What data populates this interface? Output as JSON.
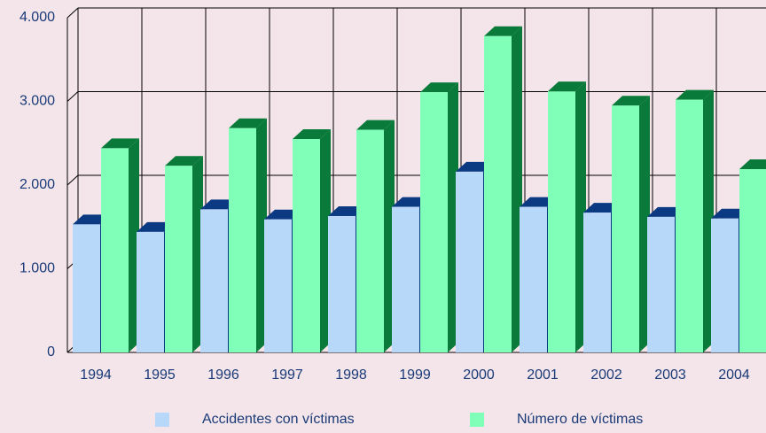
{
  "chart_data": {
    "type": "bar3d",
    "categories": [
      "1994",
      "1995",
      "1996",
      "1997",
      "1998",
      "1999",
      "2000",
      "2001",
      "2002",
      "2003",
      "2004"
    ],
    "series": [
      {
        "name": "Accidentes con víctimas",
        "color": "#b8d8fa",
        "values": [
          1530,
          1440,
          1710,
          1590,
          1630,
          1740,
          2160,
          1740,
          1670,
          1620,
          1600
        ]
      },
      {
        "name": "Número de víctimas",
        "color": "#80ffb8",
        "values": [
          2440,
          2230,
          2680,
          2550,
          2660,
          3110,
          3780,
          3120,
          2950,
          3020,
          2190
        ]
      }
    ],
    "ylim": [
      0,
      4000
    ],
    "yticks": [
      0,
      {
        "value": 1000,
        "label": "1.000"
      },
      {
        "value": 2000,
        "label": "2.000"
      },
      {
        "value": 3000,
        "label": "3.000"
      },
      {
        "value": 4000,
        "label": "4.000"
      }
    ],
    "grid": true
  }
}
